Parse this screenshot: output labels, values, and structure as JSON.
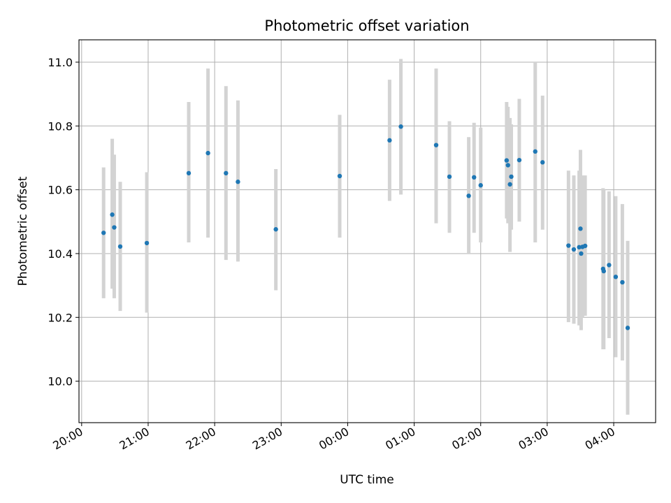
{
  "chart_data": {
    "type": "scatter",
    "title": "Photometric offset variation",
    "xlabel": "UTC time",
    "ylabel": "Photometric offset",
    "x_tick_labels": [
      "20:00",
      "21:00",
      "22:00",
      "23:00",
      "00:00",
      "01:00",
      "02:00",
      "03:00",
      "04:00"
    ],
    "y_tick_labels": [
      "10.0",
      "10.2",
      "10.4",
      "10.6",
      "10.8",
      "11.0"
    ],
    "x_ticks_hours": [
      0,
      1,
      2,
      3,
      4,
      5,
      6,
      7,
      8
    ],
    "y_ticks": [
      10.0,
      10.2,
      10.4,
      10.6,
      10.8,
      11.0
    ],
    "xlim_hours": [
      -0.04,
      8.63
    ],
    "ylim": [
      9.87,
      11.07
    ],
    "x_reference": "20:00 UTC",
    "grid": true,
    "marker_color": "#1f77b4",
    "errorbar_color": "#d3d3d3",
    "points": [
      {
        "t": 0.33,
        "y": 10.465,
        "lo": 10.26,
        "hi": 10.67
      },
      {
        "t": 0.46,
        "y": 10.522,
        "lo": 10.29,
        "hi": 10.76
      },
      {
        "t": 0.49,
        "y": 10.482,
        "lo": 10.26,
        "hi": 10.71
      },
      {
        "t": 0.58,
        "y": 10.422,
        "lo": 10.22,
        "hi": 10.625
      },
      {
        "t": 0.98,
        "y": 10.433,
        "lo": 10.215,
        "hi": 10.655
      },
      {
        "t": 1.61,
        "y": 10.652,
        "lo": 10.435,
        "hi": 10.875
      },
      {
        "t": 1.9,
        "y": 10.715,
        "lo": 10.45,
        "hi": 10.98
      },
      {
        "t": 2.17,
        "y": 10.652,
        "lo": 10.38,
        "hi": 10.925
      },
      {
        "t": 2.35,
        "y": 10.625,
        "lo": 10.375,
        "hi": 10.88
      },
      {
        "t": 2.92,
        "y": 10.476,
        "lo": 10.285,
        "hi": 10.665
      },
      {
        "t": 3.88,
        "y": 10.643,
        "lo": 10.45,
        "hi": 10.835
      },
      {
        "t": 4.63,
        "y": 10.755,
        "lo": 10.565,
        "hi": 10.945
      },
      {
        "t": 4.8,
        "y": 10.798,
        "lo": 10.585,
        "hi": 11.01
      },
      {
        "t": 5.33,
        "y": 10.74,
        "lo": 10.495,
        "hi": 10.98
      },
      {
        "t": 5.53,
        "y": 10.641,
        "lo": 10.465,
        "hi": 10.815
      },
      {
        "t": 5.82,
        "y": 10.581,
        "lo": 10.4,
        "hi": 10.765
      },
      {
        "t": 5.9,
        "y": 10.639,
        "lo": 10.465,
        "hi": 10.81
      },
      {
        "t": 6.0,
        "y": 10.614,
        "lo": 10.435,
        "hi": 10.795
      },
      {
        "t": 6.39,
        "y": 10.692,
        "lo": 10.51,
        "hi": 10.875
      },
      {
        "t": 6.41,
        "y": 10.677,
        "lo": 10.495,
        "hi": 10.86
      },
      {
        "t": 6.44,
        "y": 10.617,
        "lo": 10.405,
        "hi": 10.825
      },
      {
        "t": 6.46,
        "y": 10.641,
        "lo": 10.475,
        "hi": 10.805
      },
      {
        "t": 6.58,
        "y": 10.693,
        "lo": 10.5,
        "hi": 10.885
      },
      {
        "t": 6.82,
        "y": 10.72,
        "lo": 10.435,
        "hi": 11.0
      },
      {
        "t": 6.93,
        "y": 10.686,
        "lo": 10.475,
        "hi": 10.895
      },
      {
        "t": 7.32,
        "y": 10.425,
        "lo": 10.185,
        "hi": 10.66
      },
      {
        "t": 7.4,
        "y": 10.413,
        "lo": 10.18,
        "hi": 10.645
      },
      {
        "t": 7.48,
        "y": 10.42,
        "lo": 10.175,
        "hi": 10.66
      },
      {
        "t": 7.5,
        "y": 10.478,
        "lo": 10.23,
        "hi": 10.725
      },
      {
        "t": 7.51,
        "y": 10.4,
        "lo": 10.16,
        "hi": 10.635
      },
      {
        "t": 7.53,
        "y": 10.421,
        "lo": 10.2,
        "hi": 10.645
      },
      {
        "t": 7.57,
        "y": 10.424,
        "lo": 10.205,
        "hi": 10.645
      },
      {
        "t": 7.84,
        "y": 10.352,
        "lo": 10.1,
        "hi": 10.605
      },
      {
        "t": 7.85,
        "y": 10.345,
        "lo": 10.1,
        "hi": 10.6
      },
      {
        "t": 7.93,
        "y": 10.364,
        "lo": 10.135,
        "hi": 10.595
      },
      {
        "t": 8.03,
        "y": 10.327,
        "lo": 10.075,
        "hi": 10.58
      },
      {
        "t": 8.13,
        "y": 10.31,
        "lo": 10.065,
        "hi": 10.555
      },
      {
        "t": 8.21,
        "y": 10.167,
        "lo": 9.895,
        "hi": 10.44
      }
    ]
  }
}
